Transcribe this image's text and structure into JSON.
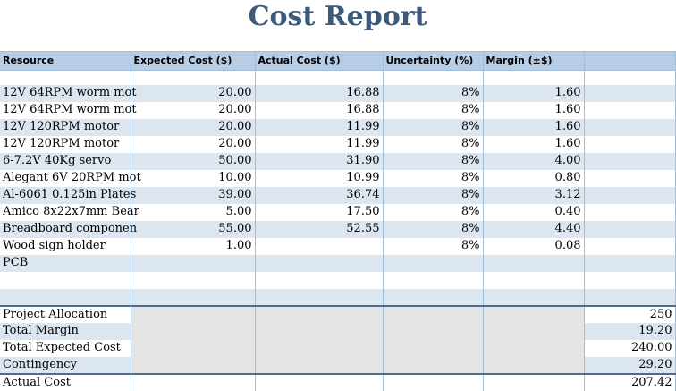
{
  "title": "Cost Report",
  "headers": [
    "Resource",
    "Expected Cost ($)",
    "Actual Cost ($)",
    "Uncertainty (%)",
    "Margin (±$)",
    ""
  ],
  "rows": [
    {
      "resource": "12V 64RPM worm mot",
      "expected": "20.00",
      "actual": "16.88",
      "uncertainty": "8%",
      "margin": "1.60"
    },
    {
      "resource": "12V 64RPM worm mot",
      "expected": "20.00",
      "actual": "16.88",
      "uncertainty": "8%",
      "margin": "1.60"
    },
    {
      "resource": "12V 120RPM motor",
      "expected": "20.00",
      "actual": "11.99",
      "uncertainty": "8%",
      "margin": "1.60"
    },
    {
      "resource": "12V 120RPM motor",
      "expected": "20.00",
      "actual": "11.99",
      "uncertainty": "8%",
      "margin": "1.60"
    },
    {
      "resource": "6-7.2V 40Kg servo",
      "expected": "50.00",
      "actual": "31.90",
      "uncertainty": "8%",
      "margin": "4.00"
    },
    {
      "resource": "Alegant 6V 20RPM mot",
      "expected": "10.00",
      "actual": "10.99",
      "uncertainty": "8%",
      "margin": "0.80"
    },
    {
      "resource": "Al-6061 0.125in Plates",
      "expected": "39.00",
      "actual": "36.74",
      "uncertainty": "8%",
      "margin": "3.12"
    },
    {
      "resource": "Amico 8x22x7mm Bear",
      "expected": "5.00",
      "actual": "17.50",
      "uncertainty": "8%",
      "margin": "0.40"
    },
    {
      "resource": "Breadboard componen",
      "expected": "55.00",
      "actual": "52.55",
      "uncertainty": "8%",
      "margin": "4.40"
    },
    {
      "resource": "Wood sign holder",
      "expected": "1.00",
      "actual": "",
      "uncertainty": "8%",
      "margin": "0.08"
    },
    {
      "resource": "PCB",
      "expected": "",
      "actual": "",
      "uncertainty": "",
      "margin": ""
    },
    {
      "resource": "",
      "expected": "",
      "actual": "",
      "uncertainty": "",
      "margin": ""
    },
    {
      "resource": "",
      "expected": "",
      "actual": "",
      "uncertainty": "",
      "margin": ""
    }
  ],
  "summary": [
    {
      "label": "Project Allocation",
      "value": "250"
    },
    {
      "label": "Total Margin",
      "value": "19.20"
    },
    {
      "label": "Total Expected Cost",
      "value": "240.00"
    },
    {
      "label": "Contingency",
      "value": "29.20"
    },
    {
      "label": "Actual Cost",
      "value": "207.42"
    }
  ]
}
